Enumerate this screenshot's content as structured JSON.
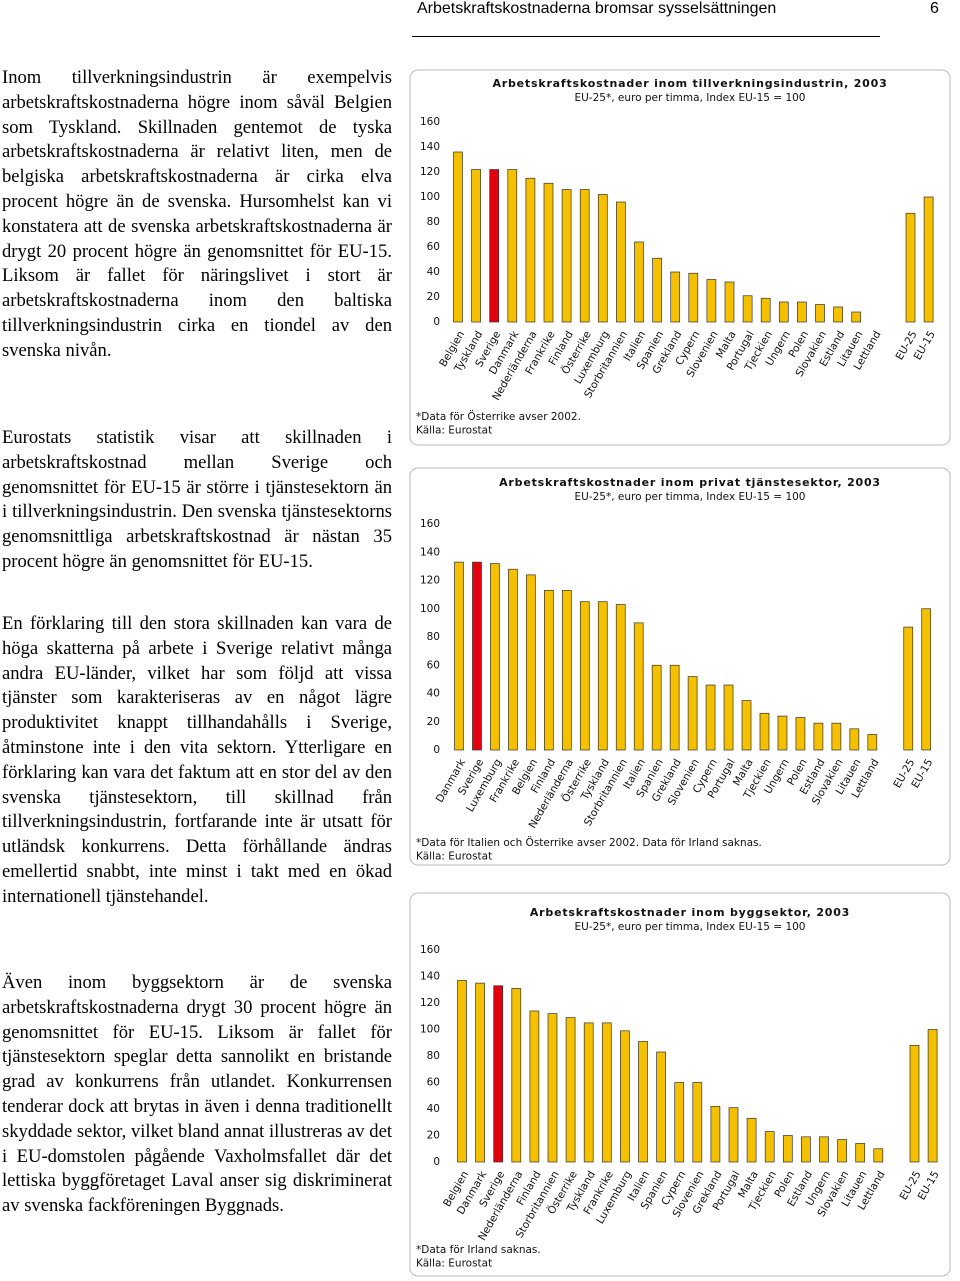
{
  "header": {
    "title": "Arbetskraftskostnaderna bromsar sysselsättningen",
    "page": "6"
  },
  "paragraphs": [
    "Inom tillverkningsindustrin är exempelvis arbetskraftskostnaderna högre inom såväl Belgien som Tyskland. Skillnaden gentemot de tyska arbetskraftskostnaderna är relativt liten, men de belgiska arbetskraftskostnaderna är cirka elva procent högre än de svenska. Hursomhelst kan vi konstatera att de svenska arbetskraftskostnaderna är drygt 20 procent högre än genomsnittet för EU-15. Liksom är fallet för näringslivet i stort är arbetskraftskostnaderna inom den baltiska tillverkningsindustrin cirka en tiondel av den svenska nivån.",
    "Eurostats statistik visar att skillnaden i arbetskraftskostnad mellan Sverige och genomsnittet för EU-15 är större i tjänstesektorn än i tillverkningsindustrin. Den svenska tjänstesektorns genomsnittliga arbetskraftskostnad är nästan 35 procent högre än genomsnittet för EU-15.",
    "En förklaring till den stora skillnaden kan vara de höga skatterna på arbete i Sverige relativt många andra EU-länder, vilket har som följd att vissa tjänster som karakteriseras av en något lägre produktivitet knappt tillhandahålls i Sverige, åtminstone inte i den vita sektorn. Ytterligare en förklaring kan vara det faktum att en stor del av den svenska tjänstesektorn, till skillnad från tillverkningsindustrin, fortfarande inte är utsatt för utländsk konkurrens. Detta förhållande ändras emellertid snabbt, inte minst i takt med en ökad internationell tjänstehandel.",
    "Även inom byggsektorn är de svenska arbetskraftskostnaderna drygt 30 procent högre än genomsnittet för EU-15. Liksom är fallet för tjänstesektorn speglar detta sannolikt en bristande grad av konkurrens från utlandet. Konkurrensen tenderar dock att brytas in även i denna traditionellt skyddade sektor, vilket bland annat illustreras av det i EU-domstolen pågående Vaxholmsfallet där det lettiska byggföretaget Laval anser sig diskriminerat av svenska fackföreningen Byggnads."
  ],
  "chart_data": [
    {
      "type": "bar",
      "title": "Arbetskraftskostnader inom tillverkningsindustrin, 2003",
      "subtitle": "EU-25*, euro per timma, Index EU-15 = 100",
      "categories": [
        "Belgien",
        "Tyskland",
        "Sverige",
        "Danmark",
        "Nederländerna",
        "Frankrike",
        "Finland",
        "Österrike",
        "Luxemburg",
        "Storbritannien",
        "Italien",
        "Spanien",
        "Grekland",
        "Cypern",
        "Slovenien",
        "Malta",
        "Portugal",
        "Tjeckien",
        "Ungern",
        "Polen",
        "Slovakien",
        "Estland",
        "Litauen",
        "Lettland",
        null,
        "EU-25",
        "EU-15"
      ],
      "values": [
        136,
        122,
        122,
        122,
        115,
        111,
        106,
        106,
        102,
        96,
        64,
        51,
        40,
        39,
        34,
        32,
        21,
        19,
        16,
        16,
        14,
        12,
        8,
        null,
        null,
        87,
        100
      ],
      "colors": [
        "#f5c000",
        "#f5c000",
        "#e3000f",
        "#f5c000",
        "#f5c000",
        "#f5c000",
        "#f5c000",
        "#f5c000",
        "#f5c000",
        "#f5c000",
        "#f5c000",
        "#f5c000",
        "#f5c000",
        "#f5c000",
        "#f5c000",
        "#f5c000",
        "#f5c000",
        "#f5c000",
        "#f5c000",
        "#f5c000",
        "#f5c000",
        "#f5c000",
        "#f5c000",
        "#f5c000",
        null,
        "#f5c000",
        "#f5c000"
      ],
      "ylim": [
        0,
        160
      ],
      "yticks": [
        0,
        20,
        40,
        60,
        80,
        100,
        120,
        140,
        160
      ],
      "notes": [
        "*Data för Österrike avser 2002.",
        "Källa: Eurostat"
      ]
    },
    {
      "type": "bar",
      "title": "Arbetskraftskostnader inom privat tjänstesektor, 2003",
      "subtitle": "EU-25*, euro per timma, Index EU-15 = 100",
      "categories": [
        "Danmark",
        "Sverige",
        "Luxemburg",
        "Frankrike",
        "Belgien",
        "Finland",
        "Nederländerna",
        "Österrike",
        "Tyskland",
        "Storbritannien",
        "Italien",
        "Spanien",
        "Grekland",
        "Slovenien",
        "Cypern",
        "Portugal",
        "Malta",
        "Tjeckien",
        "Ungern",
        "Polen",
        "Estland",
        "Slovakien",
        "Litauen",
        "Lettland",
        null,
        "EU-25",
        "EU-15"
      ],
      "values": [
        133,
        133,
        132,
        128,
        124,
        113,
        113,
        105,
        105,
        103,
        90,
        60,
        60,
        52,
        46,
        46,
        35,
        26,
        24,
        23,
        19,
        19,
        15,
        11,
        null,
        87,
        100
      ],
      "colors": [
        "#f5c000",
        "#e3000f",
        "#f5c000",
        "#f5c000",
        "#f5c000",
        "#f5c000",
        "#f5c000",
        "#f5c000",
        "#f5c000",
        "#f5c000",
        "#f5c000",
        "#f5c000",
        "#f5c000",
        "#f5c000",
        "#f5c000",
        "#f5c000",
        "#f5c000",
        "#f5c000",
        "#f5c000",
        "#f5c000",
        "#f5c000",
        "#f5c000",
        "#f5c000",
        "#f5c000",
        null,
        "#f5c000",
        "#f5c000"
      ],
      "ylim": [
        0,
        160
      ],
      "yticks": [
        0,
        20,
        40,
        60,
        80,
        100,
        120,
        140,
        160
      ],
      "notes": [
        "*Data för Italien och Österrike avser 2002. Data för Irland saknas.",
        "Källa: Eurostat"
      ]
    },
    {
      "type": "bar",
      "title": "Arbetskraftskostnader inom byggsektor, 2003",
      "subtitle": "EU-25*, euro per timma, Index EU-15 = 100",
      "categories": [
        "Belgien",
        "Danmark",
        "Sverige",
        "Nederländerna",
        "Finland",
        "Storbritannien",
        "Österrike",
        "Tyskland",
        "Frankrike",
        "Luxemburg",
        "Italien",
        "Spanien",
        "Cypern",
        "Slovenien",
        "Grekland",
        "Portugal",
        "Malta",
        "Tjeckien",
        "Polen",
        "Estland",
        "Ungern",
        "Slovakien",
        "Litauen",
        "Lettland",
        null,
        "EU-25",
        "EU-15"
      ],
      "values": [
        137,
        135,
        133,
        131,
        114,
        112,
        109,
        105,
        105,
        99,
        91,
        83,
        60,
        60,
        42,
        41,
        33,
        23,
        20,
        19,
        19,
        17,
        14,
        10,
        null,
        88,
        100
      ],
      "colors": [
        "#f5c000",
        "#f5c000",
        "#e3000f",
        "#f5c000",
        "#f5c000",
        "#f5c000",
        "#f5c000",
        "#f5c000",
        "#f5c000",
        "#f5c000",
        "#f5c000",
        "#f5c000",
        "#f5c000",
        "#f5c000",
        "#f5c000",
        "#f5c000",
        "#f5c000",
        "#f5c000",
        "#f5c000",
        "#f5c000",
        "#f5c000",
        "#f5c000",
        "#f5c000",
        "#f5c000",
        null,
        "#f5c000",
        "#f5c000"
      ],
      "ylim": [
        0,
        160
      ],
      "yticks": [
        0,
        20,
        40,
        60,
        80,
        100,
        120,
        140,
        160
      ],
      "notes": [
        "*Data för Irland saknas.",
        "Källa: Eurostat"
      ]
    }
  ]
}
